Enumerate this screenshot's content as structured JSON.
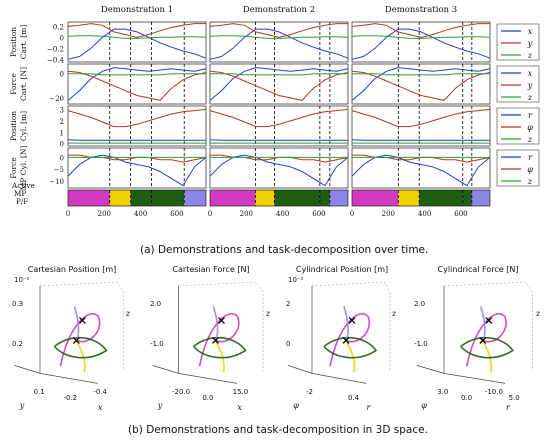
{
  "captions": {
    "a": "(a) Demonstrations and task-decomposition over time.",
    "b": "(b) Demonstrations and task-decomposition in 3D space."
  },
  "chart_data": [
    {
      "type": "line",
      "title_columns": [
        "Demonstration 1",
        "Demonstration 2",
        "Demonstration 3"
      ],
      "x": {
        "ticks": [
          0,
          200,
          400,
          600
        ],
        "range": [
          0,
          760
        ]
      },
      "rows": [
        {
          "label": "Position Cart. [m]",
          "ylim": [
            -0.45,
            0.28
          ],
          "yticks": [
            "0.2",
            "0",
            "−0.2",
            "−0.4"
          ],
          "yticks_values": [
            0.2,
            0,
            -0.2,
            -0.4
          ],
          "series": [
            {
              "name": "x",
              "color": "#1f3fd6",
              "values": [
                -0.4,
                -0.35,
                -0.2,
                0.0,
                0.15,
                0.15,
                0.1,
                0.0,
                -0.1,
                -0.18,
                -0.25,
                -0.3,
                -0.38
              ]
            },
            {
              "name": "y",
              "color": "#b5381c",
              "values": [
                0.2,
                0.22,
                0.25,
                0.22,
                0.1,
                0.05,
                0.0,
                0.05,
                0.12,
                0.18,
                0.22,
                0.25,
                0.25
              ]
            },
            {
              "name": "z",
              "color": "#2ca02c",
              "values": [
                0.02,
                0.03,
                0.03,
                0.02,
                0.0,
                -0.02,
                -0.02,
                -0.01,
                0.0,
                0.0,
                0.01,
                0.01,
                0.0
              ]
            }
          ]
        },
        {
          "label": "Force Cart. [N]",
          "ylim": [
            -25,
            8
          ],
          "yticks": [
            "0",
            "−20"
          ],
          "yticks_values": [
            0,
            -20
          ],
          "series": [
            {
              "name": "x",
              "color": "#1f3fd6",
              "values": [
                -22,
                -14,
                -4,
                2,
                5,
                4,
                3,
                2,
                3,
                4,
                3,
                2,
                4
              ]
            },
            {
              "name": "y",
              "color": "#b5381c",
              "values": [
                2,
                1,
                -2,
                -6,
                -10,
                -14,
                -18,
                -20,
                -22,
                -12,
                -5,
                -1,
                1
              ]
            },
            {
              "name": "z",
              "color": "#2ca02c",
              "values": [
                0,
                0,
                0,
                -1,
                -1,
                -1,
                -1,
                -1,
                -1,
                0,
                0,
                0,
                0
              ]
            }
          ]
        },
        {
          "label": "Position Cyl. [m]",
          "ylim": [
            -0.2,
            3.3
          ],
          "yticks": [
            "3",
            "2",
            "1",
            "0"
          ],
          "yticks_values": [
            3,
            2,
            1,
            0
          ],
          "series": [
            {
              "name": "r",
              "color": "#1f3fd6",
              "values": [
                0.35,
                0.3,
                0.3,
                0.3,
                0.3,
                0.3,
                0.3,
                0.3,
                0.3,
                0.3,
                0.3,
                0.3,
                0.3
              ]
            },
            {
              "name": "φ",
              "color": "#b5381c",
              "values": [
                2.9,
                2.6,
                2.3,
                1.9,
                1.5,
                1.5,
                1.7,
                2.0,
                2.3,
                2.6,
                2.8,
                2.9,
                3.0
              ]
            },
            {
              "name": "z",
              "color": "#2ca02c",
              "values": [
                0.05,
                0.05,
                0.05,
                0.05,
                0.05,
                0.05,
                0.05,
                0.05,
                0.05,
                0.05,
                0.05,
                0.05,
                0.05
              ]
            }
          ]
        },
        {
          "label": "Force MP Cyl. [N]",
          "ylim": [
            -13,
            4
          ],
          "yticks": [
            "0",
            "−5",
            "−10"
          ],
          "yticks_values": [
            0,
            -5,
            -10
          ],
          "series": [
            {
              "name": "r",
              "color": "#1f3fd6",
              "values": [
                -8,
                -3,
                0,
                1,
                0,
                -2,
                -3,
                -4,
                -6,
                -9,
                -12,
                -4,
                0
              ]
            },
            {
              "name": "φ",
              "color": "#b5381c",
              "values": [
                1,
                1,
                0,
                0,
                -1,
                -1,
                0,
                0,
                -1,
                -1,
                -2,
                -1,
                0
              ]
            },
            {
              "name": "z",
              "color": "#2ca02c",
              "values": [
                0,
                0,
                0,
                0,
                0,
                0,
                0,
                0,
                0,
                0,
                0,
                0,
                0
              ]
            }
          ]
        }
      ],
      "segments": {
        "label": "Active MP P/F",
        "demos": [
          [
            {
              "from": 0,
              "to": 230,
              "color": "#d13ac0"
            },
            {
              "from": 230,
              "to": 345,
              "color": "#f0d000"
            },
            {
              "from": 345,
              "to": 460,
              "color": "#1e5e12"
            },
            {
              "from": 460,
              "to": 640,
              "color": "#1e5e12"
            },
            {
              "from": 640,
              "to": 760,
              "color": "#8c86e8"
            }
          ],
          [
            {
              "from": 0,
              "to": 250,
              "color": "#d13ac0"
            },
            {
              "from": 250,
              "to": 355,
              "color": "#f0d000"
            },
            {
              "from": 355,
              "to": 605,
              "color": "#1e5e12"
            },
            {
              "from": 605,
              "to": 660,
              "color": "#1e5e12"
            },
            {
              "from": 660,
              "to": 760,
              "color": "#8c86e8"
            }
          ],
          [
            {
              "from": 0,
              "to": 255,
              "color": "#d13ac0"
            },
            {
              "from": 255,
              "to": 370,
              "color": "#f0d000"
            },
            {
              "from": 370,
              "to": 610,
              "color": "#1e5e12"
            },
            {
              "from": 610,
              "to": 660,
              "color": "#1e5e12"
            },
            {
              "from": 660,
              "to": 760,
              "color": "#8c86e8"
            }
          ]
        ],
        "dashed_boundaries": [
          [
            230,
            345,
            460,
            640
          ],
          [
            250,
            355,
            605,
            660
          ],
          [
            255,
            370,
            610,
            660
          ]
        ]
      }
    },
    {
      "type": "scatter",
      "plots": [
        {
          "title": "Cartesian Position [m]",
          "exponent": "10⁻²",
          "tick_labels": [
            {
              "text": "0.3"
            },
            {
              "text": "0.2"
            },
            {
              "text": "0.1"
            },
            {
              "text": "-0.2"
            },
            {
              "text": "-0.4"
            }
          ],
          "axis_labels": [
            "z",
            "y",
            "x"
          ]
        },
        {
          "title": "Cartesian Force [N]",
          "tick_labels": [
            {
              "text": "2.0"
            },
            {
              "text": "-1.0"
            },
            {
              "text": "-20.0"
            },
            {
              "text": "0.0"
            },
            {
              "text": "15.0"
            }
          ],
          "axis_labels": [
            "z",
            "y",
            "x"
          ]
        },
        {
          "title": "Cylindrical Position [m]",
          "exponent": "10⁻²",
          "tick_labels": [
            {
              "text": "2"
            },
            {
              "text": "0"
            },
            {
              "text": "-2"
            },
            {
              "text": "0.4"
            }
          ],
          "axis_labels": [
            "z",
            "φ",
            "r"
          ]
        },
        {
          "title": "Cylindrical Force [N]",
          "tick_labels": [
            {
              "text": "2.0"
            },
            {
              "text": "-1.0"
            },
            {
              "text": "3.0"
            },
            {
              "text": "0.0"
            },
            {
              "text": "-10.0"
            },
            {
              "text": "5.0"
            }
          ],
          "axis_labels": [
            "z",
            "φ",
            "r"
          ]
        }
      ],
      "segment_colors": [
        "#d13ac0",
        "#f0d000",
        "#1e5e12",
        "#8c86e8"
      ]
    }
  ]
}
